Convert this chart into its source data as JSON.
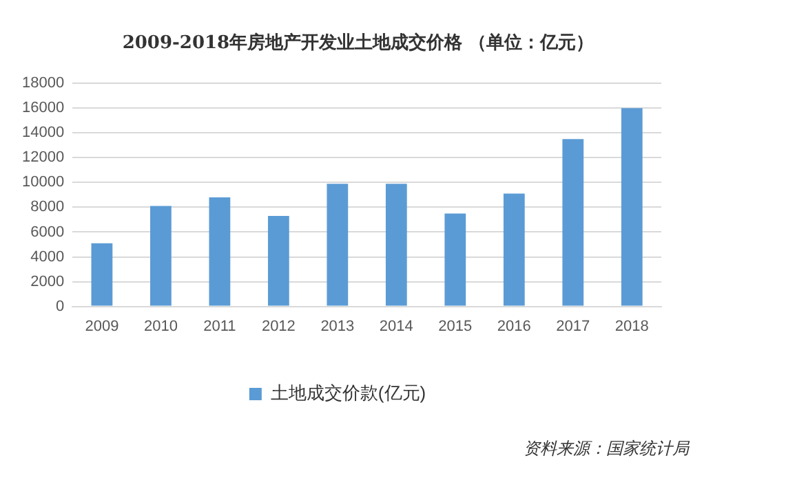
{
  "chart_data": {
    "type": "bar",
    "title": "2009-2018年房地产开发业土地成交价格 （单位：亿元）",
    "categories": [
      "2009",
      "2010",
      "2011",
      "2012",
      "2013",
      "2014",
      "2015",
      "2016",
      "2017",
      "2018"
    ],
    "series": [
      {
        "name": "土地成交价款(亿元)",
        "color": "#5b9bd5",
        "values": [
          5100,
          8100,
          8800,
          7300,
          9900,
          9900,
          7500,
          9100,
          13500,
          16000
        ]
      }
    ],
    "ylim": [
      0,
      18000
    ],
    "yticks": [
      0,
      2000,
      4000,
      6000,
      8000,
      10000,
      12000,
      14000,
      16000,
      18000
    ],
    "grid": "y",
    "legend": "bottom",
    "annotations": [
      "资料来源：国家统计局"
    ]
  }
}
